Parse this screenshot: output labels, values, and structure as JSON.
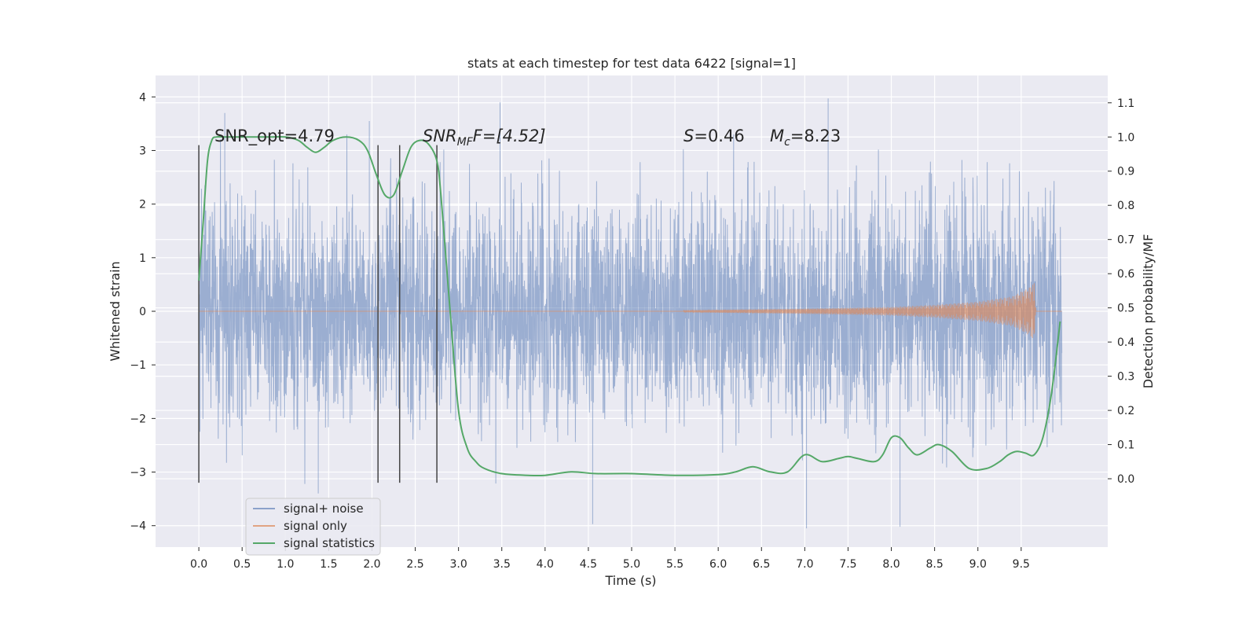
{
  "chart_data": {
    "type": "line",
    "title": "stats at each timestep for test data 6422 [signal=1]",
    "xlabel": "Time (s)",
    "ylabel": "Whitened strain",
    "ylabel_right": "Detection probability/MF",
    "xlim": [
      -0.5,
      10.5
    ],
    "ylim": [
      -4.4,
      4.4
    ],
    "ylim_right": [
      -0.2,
      1.18
    ],
    "x_ticks": [
      0.0,
      0.5,
      1.0,
      1.5,
      2.0,
      2.5,
      3.0,
      3.5,
      4.0,
      4.5,
      5.0,
      5.5,
      6.0,
      6.5,
      7.0,
      7.5,
      8.0,
      8.5,
      9.0,
      9.5
    ],
    "x_tick_labels": [
      "0.0",
      "0.5",
      "1.0",
      "1.5",
      "2.0",
      "2.5",
      "3.0",
      "3.5",
      "4.0",
      "4.5",
      "5.0",
      "5.5",
      "6.0",
      "6.5",
      "7.0",
      "7.5",
      "8.0",
      "8.5",
      "9.0",
      "9.5"
    ],
    "y_ticks": [
      -4,
      -3,
      -2,
      -1,
      0,
      1,
      2,
      3,
      4
    ],
    "y_tick_labels": [
      "−4",
      "−3",
      "−2",
      "−1",
      "0",
      "1",
      "2",
      "3",
      "4"
    ],
    "y_right_ticks": [
      0.0,
      0.1,
      0.2,
      0.3,
      0.4,
      0.5,
      0.6,
      0.7,
      0.8,
      0.9,
      1.0,
      1.1
    ],
    "y_right_tick_labels": [
      "0.0",
      "0.1",
      "0.2",
      "0.3",
      "0.4",
      "0.5",
      "0.6",
      "0.7",
      "0.8",
      "0.9",
      "1.0",
      "1.1"
    ],
    "grid": true,
    "background": "#eaeaf2",
    "legend_position": "lower-left",
    "series": [
      {
        "name": "signal+ noise",
        "axis": "left",
        "color": "#4c72b0",
        "style": "dense noise trace (random noise, envelope approx ±3, peaks to ±4)",
        "x_range": [
          0.0,
          9.97
        ],
        "envelope_peaks": [
          {
            "x": 0.3,
            "y": 3.7
          },
          {
            "x": 1.97,
            "y": 3.55
          },
          {
            "x": 3.48,
            "y": 3.9
          },
          {
            "x": 7.27,
            "y": 3.97
          },
          {
            "x": 1.38,
            "y": -3.4
          },
          {
            "x": 4.55,
            "y": -3.97
          },
          {
            "x": 7.02,
            "y": -4.05
          },
          {
            "x": 8.1,
            "y": -4.02
          }
        ]
      },
      {
        "name": "signal only",
        "axis": "left",
        "color": "#dd8452",
        "style": "chirp with growing amplitude",
        "amplitude_points": [
          {
            "x": 5.6,
            "y": 0.02
          },
          {
            "x": 7.0,
            "y": 0.05
          },
          {
            "x": 8.0,
            "y": 0.08
          },
          {
            "x": 8.5,
            "y": 0.12
          },
          {
            "x": 9.0,
            "y": 0.18
          },
          {
            "x": 9.4,
            "y": 0.28
          },
          {
            "x": 9.6,
            "y": 0.45
          },
          {
            "x": 9.65,
            "y": 0.55
          },
          {
            "x": 9.67,
            "y": 0.02
          }
        ]
      },
      {
        "name": "signal statistics",
        "axis": "right",
        "color": "#55a868",
        "x": [
          0.0,
          0.05,
          0.1,
          0.15,
          0.2,
          0.3,
          0.5,
          0.8,
          1.0,
          1.15,
          1.25,
          1.35,
          1.45,
          1.55,
          1.7,
          1.85,
          1.95,
          2.05,
          2.15,
          2.25,
          2.35,
          2.45,
          2.55,
          2.65,
          2.75,
          2.8,
          2.9,
          3.0,
          3.1,
          3.2,
          3.3,
          3.5,
          3.8,
          4.0,
          4.3,
          4.6,
          5.0,
          5.5,
          6.0,
          6.2,
          6.4,
          6.6,
          6.8,
          7.0,
          7.2,
          7.4,
          7.5,
          7.6,
          7.8,
          7.9,
          8.0,
          8.1,
          8.2,
          8.3,
          8.45,
          8.55,
          8.7,
          8.9,
          9.1,
          9.25,
          9.35,
          9.45,
          9.55,
          9.65,
          9.75,
          9.85,
          9.95
        ],
        "values": [
          0.58,
          0.75,
          0.93,
          0.99,
          1.0,
          1.0,
          1.0,
          1.0,
          1.0,
          0.99,
          0.97,
          0.955,
          0.97,
          0.99,
          1.0,
          0.99,
          0.96,
          0.89,
          0.83,
          0.83,
          0.9,
          0.97,
          0.99,
          0.98,
          0.93,
          0.82,
          0.5,
          0.2,
          0.09,
          0.05,
          0.03,
          0.015,
          0.01,
          0.01,
          0.02,
          0.015,
          0.015,
          0.01,
          0.012,
          0.02,
          0.035,
          0.02,
          0.02,
          0.07,
          0.05,
          0.06,
          0.065,
          0.06,
          0.05,
          0.07,
          0.12,
          0.12,
          0.09,
          0.07,
          0.09,
          0.1,
          0.08,
          0.03,
          0.03,
          0.05,
          0.07,
          0.08,
          0.075,
          0.07,
          0.12,
          0.25,
          0.46
        ]
      }
    ],
    "vertical_lines": {
      "color": "#444444",
      "x": [
        0.0,
        2.07,
        2.32,
        2.75
      ],
      "y_range": [
        -3.2,
        3.1
      ]
    },
    "annotations": [
      {
        "id": "snr-opt",
        "text": "SNR_opt=4.79",
        "x": 0.2,
        "y": 3.1
      },
      {
        "id": "snr-mf",
        "text_main": "SNR",
        "text_sub": "MF",
        "text_after": "F=[4.52]",
        "x": 2.6,
        "y": 3.1
      },
      {
        "id": "s-value",
        "text_main": "S",
        "text_after": "=0.46",
        "x": 5.6,
        "y": 3.1
      },
      {
        "id": "mc-value",
        "text_main": "M",
        "text_sub": "c",
        "text_after": "=8.23",
        "x": 6.6,
        "y": 3.1
      }
    ]
  }
}
